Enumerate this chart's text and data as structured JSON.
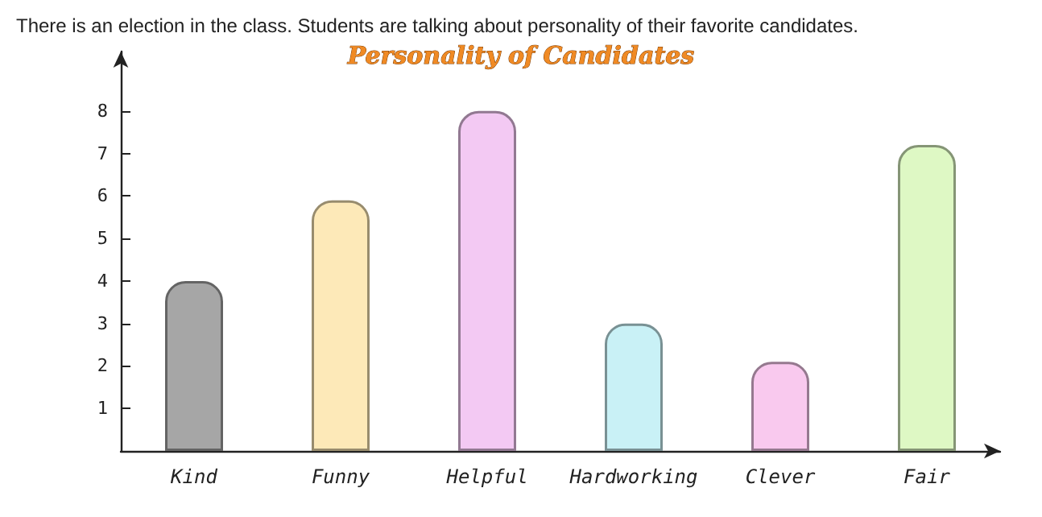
{
  "chart_data": {
    "type": "bar",
    "title": "Personality of Candidates",
    "annotations": [
      "There is an election in the class. Students are talking about personality of their favorite candidates."
    ],
    "categories": [
      "Kind",
      "Funny",
      "Helpful",
      "Hardworking",
      "Clever",
      "Fair"
    ],
    "values": [
      4,
      5.9,
      8,
      3,
      2.1,
      7.2
    ],
    "colors": [
      "#a6a6a6",
      "#fde9b8",
      "#f3c9f3",
      "#c9f1f6",
      "#f9c9ee",
      "#def8c4"
    ],
    "ylim": [
      0,
      9.4
    ],
    "yticks": [
      1,
      2,
      3,
      4,
      5,
      6,
      7,
      8
    ],
    "grid": false
  }
}
